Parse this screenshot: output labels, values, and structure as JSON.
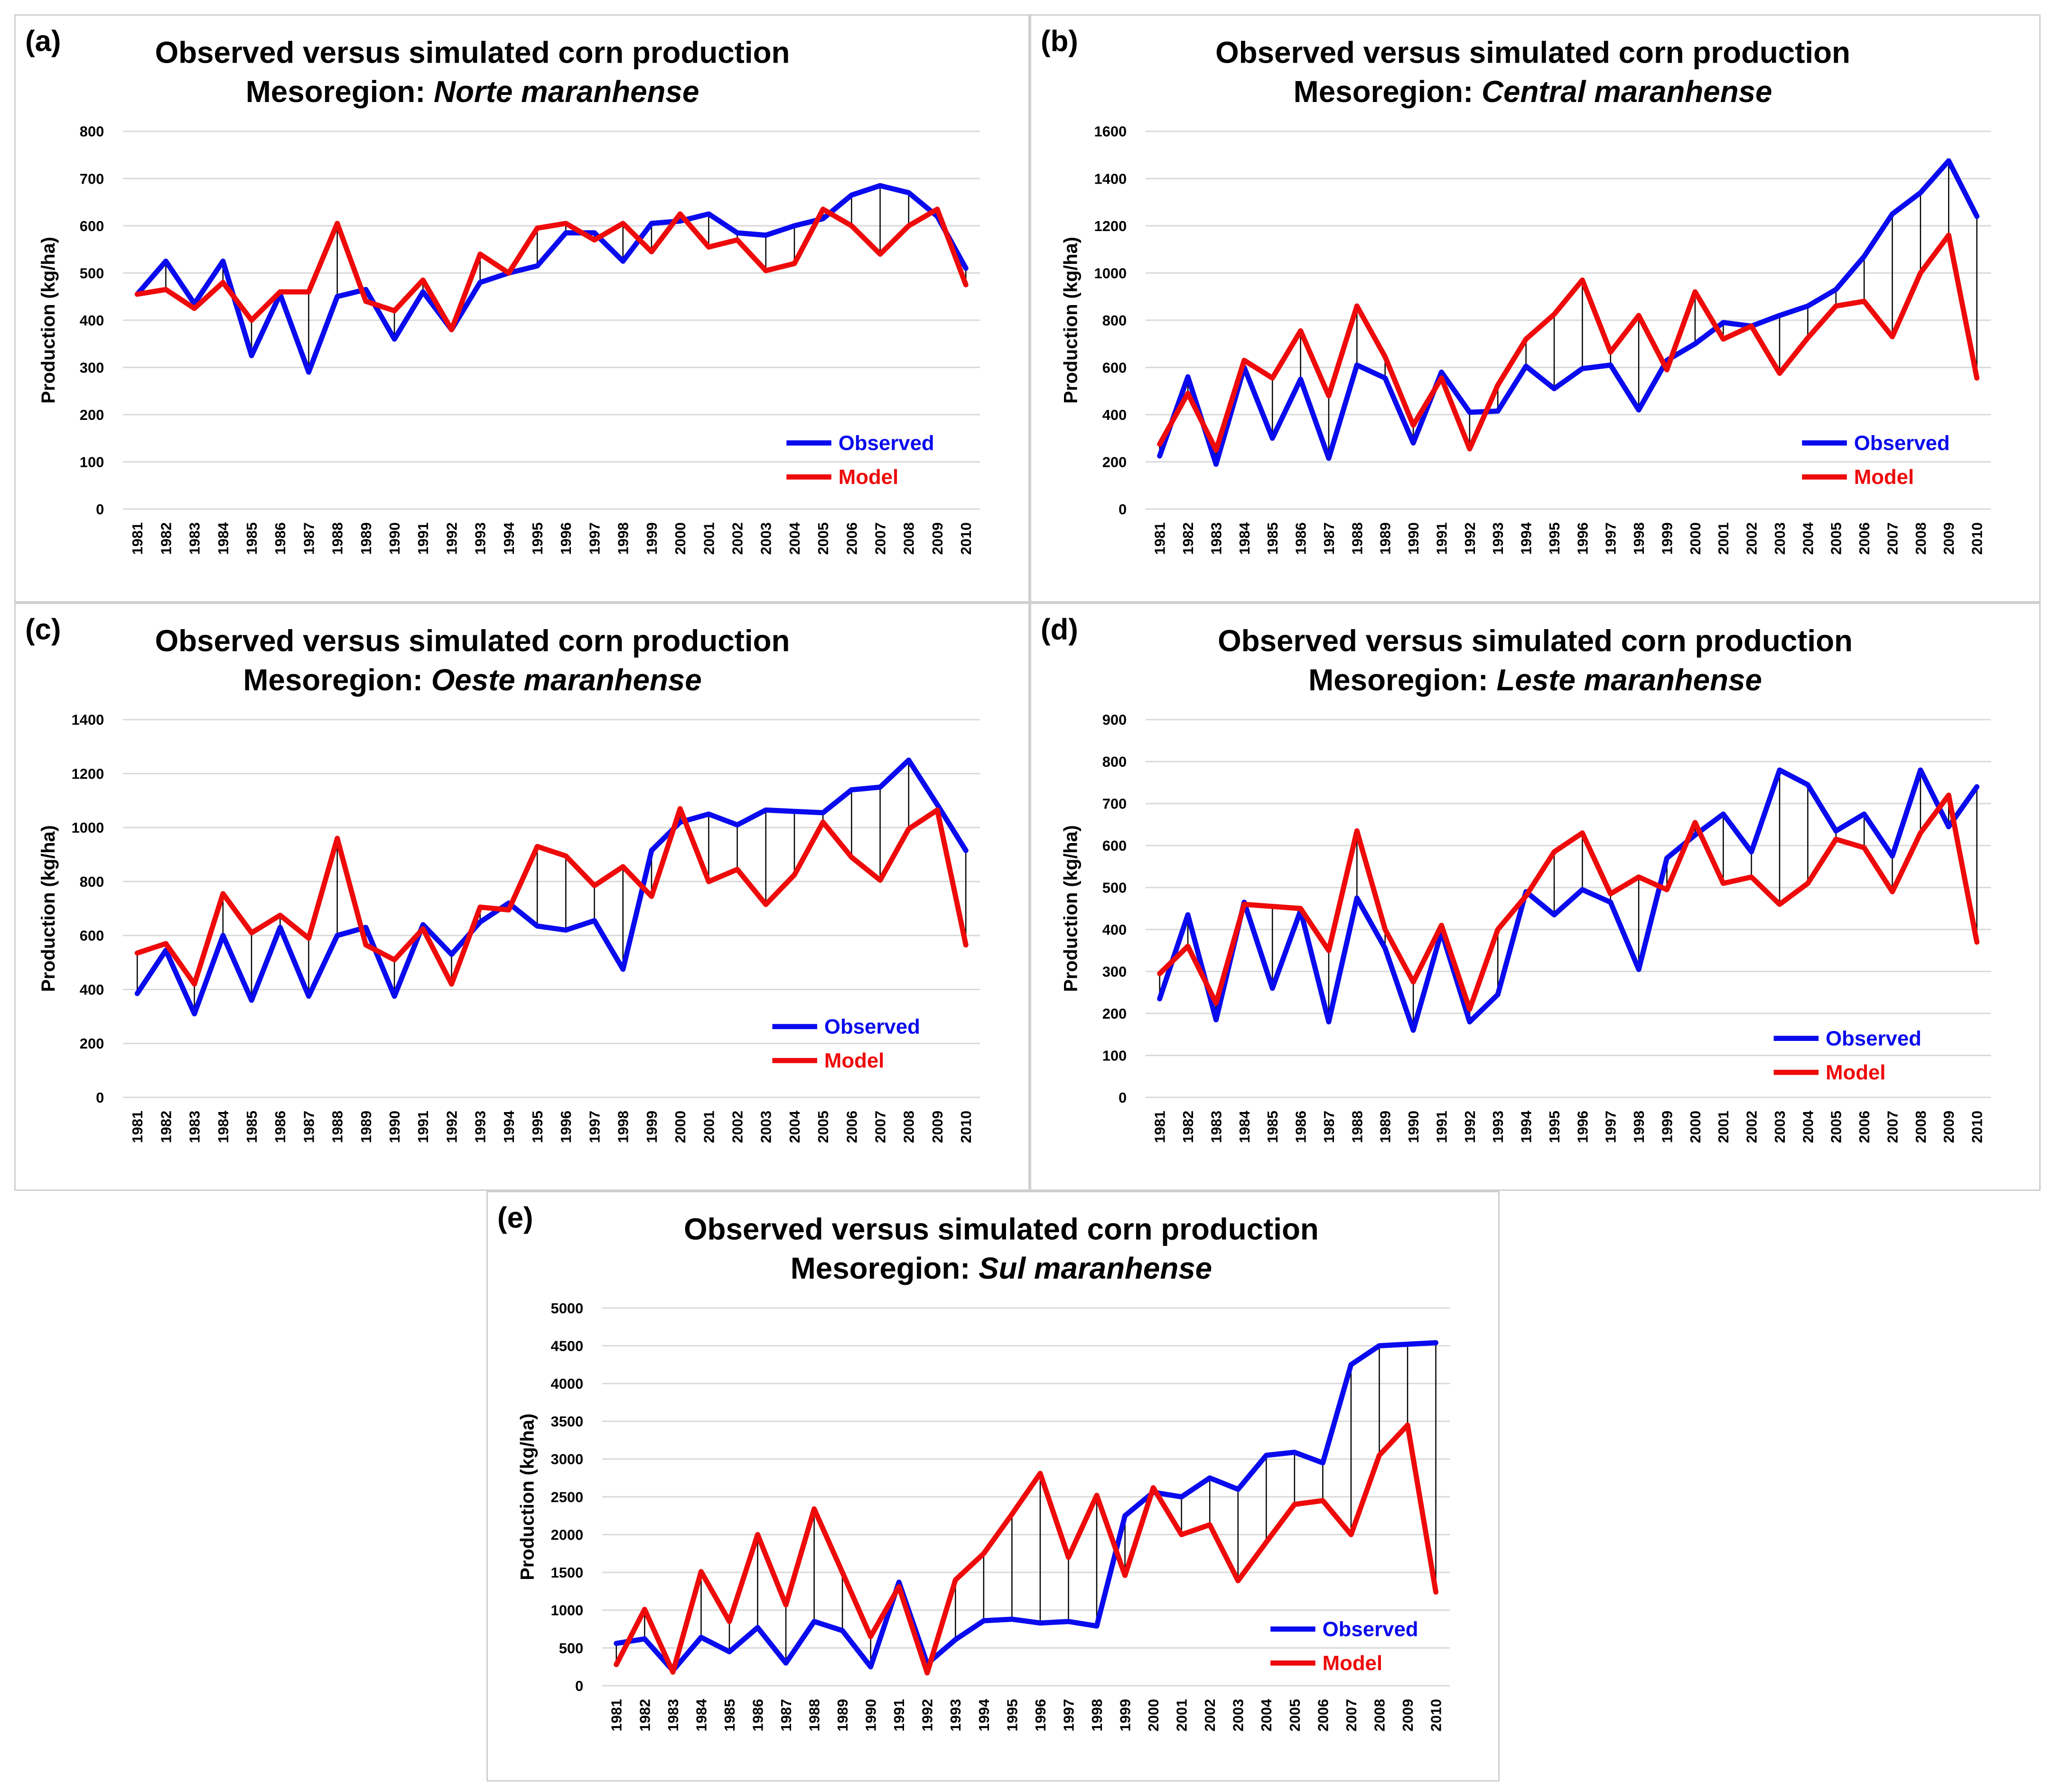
{
  "colors": {
    "observed": "#0a0aee",
    "model": "#ee0a0a"
  },
  "chart_data": [
    {
      "id": "a",
      "type": "line",
      "panel_label": "(a)",
      "title": "Observed versus simulated corn production",
      "subtitle_prefix": "Mesoregion: ",
      "subtitle_region": "Norte maranhense",
      "ylabel": "Production (kg/ha)",
      "ylim": [
        0,
        800
      ],
      "yticks": [
        "0",
        "100",
        "200",
        "300",
        "400",
        "500",
        "600",
        "700",
        "800"
      ],
      "categories": [
        "1981",
        "1982",
        "1983",
        "1984",
        "1985",
        "1986",
        "1987",
        "1988",
        "1989",
        "1990",
        "1991",
        "1992",
        "1993",
        "1994",
        "1995",
        "1996",
        "1997",
        "1998",
        "1999",
        "2000",
        "2001",
        "2002",
        "2003",
        "2004",
        "2005",
        "2006",
        "2007",
        "2008",
        "2009",
        "2010"
      ],
      "series": [
        {
          "name": "Observed",
          "values": [
            455,
            525,
            435,
            525,
            325,
            455,
            290,
            450,
            465,
            360,
            460,
            380,
            480,
            500,
            515,
            585,
            585,
            525,
            605,
            610,
            625,
            585,
            580,
            600,
            615,
            665,
            685,
            670,
            620,
            510
          ]
        },
        {
          "name": "Model",
          "values": [
            455,
            465,
            425,
            480,
            400,
            460,
            460,
            605,
            440,
            420,
            485,
            380,
            540,
            500,
            595,
            605,
            570,
            605,
            545,
            625,
            555,
            570,
            505,
            520,
            635,
            600,
            540,
            600,
            635,
            475
          ]
        }
      ]
    },
    {
      "id": "b",
      "type": "line",
      "panel_label": "(b)",
      "title": "Observed versus simulated corn production",
      "subtitle_prefix": "Mesoregion: ",
      "subtitle_region": "Central maranhense",
      "ylabel": "Production (kg/ha)",
      "ylim": [
        0,
        1600
      ],
      "yticks": [
        "0",
        "200",
        "400",
        "600",
        "800",
        "1000",
        "1200",
        "1400",
        "1600"
      ],
      "categories": [
        "1981",
        "1982",
        "1983",
        "1984",
        "1985",
        "1986",
        "1987",
        "1988",
        "1989",
        "1990",
        "1991",
        "1992",
        "1993",
        "1994",
        "1995",
        "1996",
        "1997",
        "1998",
        "1999",
        "2000",
        "2001",
        "2002",
        "2003",
        "2004",
        "2005",
        "2006",
        "2007",
        "2008",
        "2009",
        "2010"
      ],
      "series": [
        {
          "name": "Observed",
          "values": [
            225,
            560,
            190,
            600,
            300,
            550,
            215,
            610,
            555,
            280,
            580,
            410,
            415,
            605,
            510,
            595,
            610,
            420,
            630,
            700,
            790,
            775,
            820,
            860,
            930,
            1070,
            1250,
            1340,
            1475,
            1240
          ]
        },
        {
          "name": "Model",
          "values": [
            275,
            490,
            250,
            630,
            555,
            755,
            480,
            860,
            645,
            355,
            555,
            255,
            525,
            720,
            825,
            970,
            665,
            820,
            590,
            920,
            720,
            775,
            575,
            725,
            860,
            880,
            730,
            1000,
            1160,
            555
          ]
        }
      ]
    },
    {
      "id": "c",
      "type": "line",
      "panel_label": "(c)",
      "title": "Observed versus simulated corn production",
      "subtitle_prefix": "Mesoregion: ",
      "subtitle_region": "Oeste maranhense",
      "ylabel": "Production (kg/ha)",
      "ylim": [
        0,
        1400
      ],
      "yticks": [
        "0",
        "200",
        "400",
        "600",
        "800",
        "1000",
        "1200",
        "1400"
      ],
      "categories": [
        "1981",
        "1982",
        "1983",
        "1984",
        "1985",
        "1986",
        "1987",
        "1988",
        "1989",
        "1990",
        "1991",
        "1992",
        "1993",
        "1994",
        "1995",
        "1996",
        "1997",
        "1998",
        "1999",
        "2000",
        "2001",
        "2002",
        "2003",
        "2004",
        "2005",
        "2006",
        "2007",
        "2008",
        "2009",
        "2010"
      ],
      "series": [
        {
          "name": "Observed",
          "values": [
            385,
            545,
            310,
            600,
            360,
            630,
            375,
            600,
            630,
            375,
            640,
            530,
            650,
            720,
            635,
            620,
            655,
            475,
            915,
            1020,
            1050,
            1010,
            1065,
            1060,
            1055,
            1140,
            1150,
            1250,
            1085,
            915
          ]
        },
        {
          "name": "Model",
          "values": [
            535,
            570,
            420,
            755,
            610,
            675,
            590,
            960,
            565,
            510,
            625,
            420,
            705,
            695,
            930,
            895,
            785,
            855,
            745,
            1070,
            800,
            845,
            715,
            825,
            1020,
            890,
            805,
            995,
            1065,
            565
          ]
        }
      ]
    },
    {
      "id": "d",
      "type": "line",
      "panel_label": "(d)",
      "title": "Observed versus simulated corn production",
      "subtitle_prefix": "Mesoregion: ",
      "subtitle_region": "Leste maranhense",
      "ylabel": "Production (kg/ha)",
      "ylim": [
        0,
        900
      ],
      "yticks": [
        "0",
        "100",
        "200",
        "300",
        "400",
        "500",
        "600",
        "700",
        "800",
        "900"
      ],
      "categories": [
        "1981",
        "1982",
        "1983",
        "1984",
        "1985",
        "1986",
        "1987",
        "1988",
        "1989",
        "1990",
        "1991",
        "1992",
        "1993",
        "1994",
        "1995",
        "1996",
        "1997",
        "1998",
        "1999",
        "2000",
        "2001",
        "2002",
        "2003",
        "2004",
        "2005",
        "2006",
        "2007",
        "2008",
        "2009",
        "2010"
      ],
      "series": [
        {
          "name": "Observed",
          "values": [
            235,
            435,
            185,
            465,
            260,
            445,
            180,
            475,
            355,
            160,
            395,
            180,
            245,
            490,
            435,
            495,
            465,
            305,
            570,
            625,
            675,
            585,
            780,
            745,
            635,
            675,
            575,
            780,
            645,
            740
          ]
        },
        {
          "name": "Model",
          "values": [
            295,
            360,
            225,
            460,
            455,
            450,
            350,
            635,
            400,
            275,
            410,
            210,
            400,
            480,
            585,
            630,
            485,
            525,
            495,
            655,
            510,
            525,
            460,
            510,
            615,
            595,
            490,
            630,
            720,
            370
          ]
        }
      ]
    },
    {
      "id": "e",
      "type": "line",
      "panel_label": "(e)",
      "title": "Observed versus simulated corn production",
      "subtitle_prefix": "Mesoregion: ",
      "subtitle_region": "Sul maranhense",
      "ylabel": "Production (kg/ha)",
      "ylim": [
        0,
        5000
      ],
      "yticks": [
        "0",
        "500",
        "1000",
        "1500",
        "2000",
        "2500",
        "3000",
        "3500",
        "4000",
        "4500",
        "5000"
      ],
      "categories": [
        "1981",
        "1982",
        "1983",
        "1984",
        "1985",
        "1986",
        "1987",
        "1988",
        "1989",
        "1990",
        "1991",
        "1992",
        "1993",
        "1994",
        "1995",
        "1996",
        "1997",
        "1998",
        "1999",
        "2000",
        "2001",
        "2002",
        "2003",
        "2004",
        "2005",
        "2006",
        "2007",
        "2008",
        "2009",
        "2010"
      ],
      "series": [
        {
          "name": "Observed",
          "values": [
            560,
            620,
            200,
            640,
            450,
            770,
            300,
            850,
            730,
            250,
            1370,
            290,
            610,
            860,
            880,
            830,
            850,
            790,
            2250,
            2560,
            2500,
            2750,
            2600,
            3050,
            3090,
            2950,
            4250,
            4500,
            4520,
            4540
          ]
        },
        {
          "name": "Model",
          "values": [
            280,
            1010,
            180,
            1510,
            850,
            2000,
            1070,
            2340,
            1500,
            650,
            1310,
            170,
            1400,
            1750,
            2270,
            2810,
            1700,
            2520,
            1460,
            2620,
            2000,
            2130,
            1390,
            1900,
            2400,
            2450,
            2000,
            3050,
            3450,
            1240
          ]
        }
      ]
    }
  ]
}
